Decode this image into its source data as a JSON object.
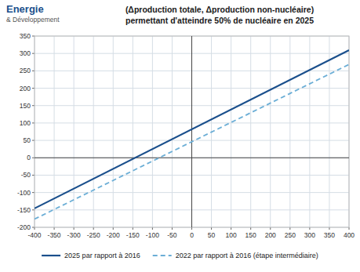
{
  "chart_data": {
    "type": "line",
    "title": "(Δproduction totale, Δproduction non-nucléaire)",
    "subtitle": "permettant d'atteindre 50% de nucléaire en 2025",
    "annotations": [
      "Energie",
      "& Développement"
    ],
    "x": [
      -400,
      400
    ],
    "series": [
      {
        "name": "2025 par rapport à 2016",
        "color": "#1a4f8c",
        "line_style": "solid",
        "values": [
          -145.6,
          309.6
        ]
      },
      {
        "name": "2022 par rapport à 2016 (étape intermédiaire)",
        "color": "#6baed6",
        "line_style": "dashed",
        "values": [
          -176.4,
          268.4
        ]
      }
    ],
    "xlim": [
      -400,
      400
    ],
    "ylim": [
      -200,
      350
    ],
    "xticks": [
      -400,
      -350,
      -300,
      -250,
      -200,
      -150,
      -100,
      -50,
      0,
      50,
      100,
      150,
      200,
      250,
      300,
      350,
      400
    ],
    "yticks": [
      -200,
      -150,
      -100,
      -50,
      0,
      50,
      100,
      150,
      200,
      250,
      300,
      350
    ],
    "grid": true,
    "legend": "bottom"
  }
}
